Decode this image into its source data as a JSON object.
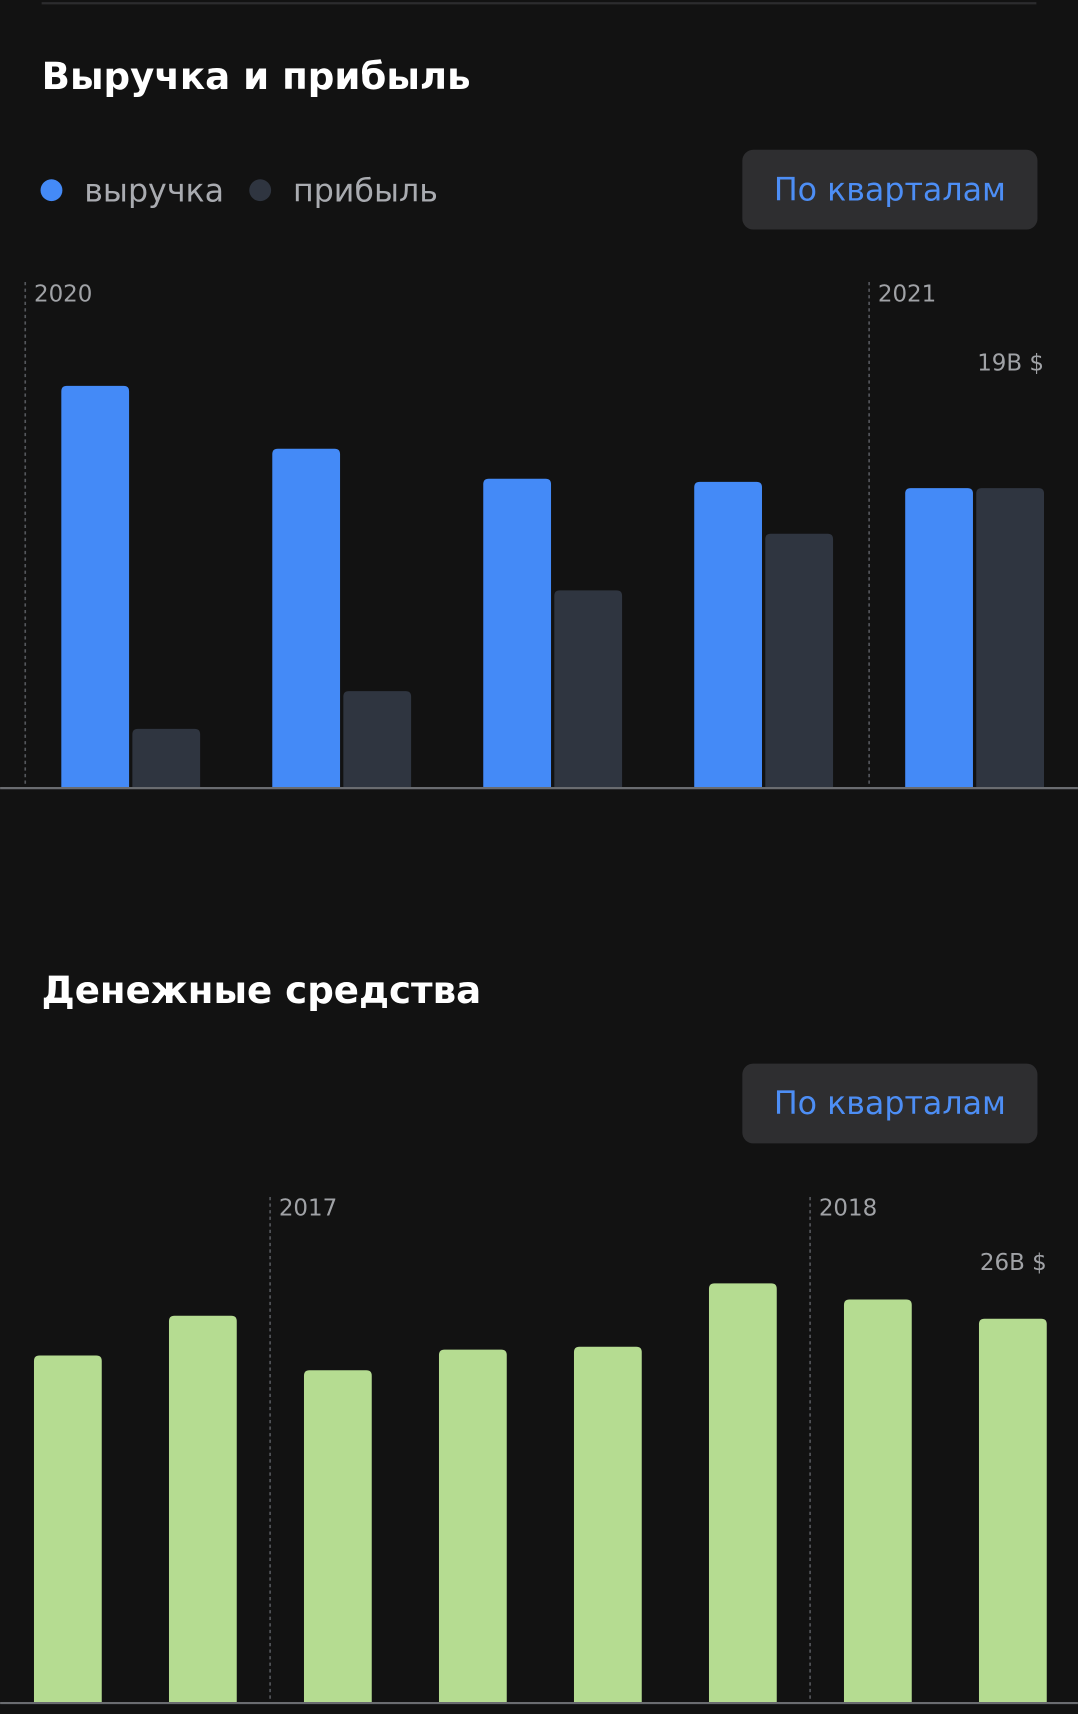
{
  "chart_data": [
    {
      "type": "bar",
      "title": "Выручка и прибыль",
      "button": "По кварталам",
      "categories": [
        "2020",
        null,
        null,
        null,
        "2021"
      ],
      "series": [
        {
          "name": "выручка",
          "color": "#448af7",
          "values": [
            25.5,
            21.5,
            19.6,
            19.4,
            19
          ]
        },
        {
          "name": "прибыль",
          "color": "#2f3540",
          "values": [
            3.7,
            6.1,
            12.5,
            16.1,
            19
          ],
          "value_labels": [
            null,
            null,
            null,
            null,
            "19B $"
          ]
        }
      ]
    },
    {
      "type": "bar",
      "title": "Денежные средства",
      "button": "По кварталам",
      "categories": [
        null,
        null,
        "2017",
        null,
        null,
        null,
        "2018",
        null
      ],
      "color": "#b5dc91",
      "values": [
        23.5,
        26.2,
        22.5,
        23.9,
        24.1,
        28.4,
        27.3,
        26
      ],
      "value_labels": [
        null,
        null,
        null,
        null,
        null,
        null,
        null,
        "26B $"
      ]
    }
  ]
}
